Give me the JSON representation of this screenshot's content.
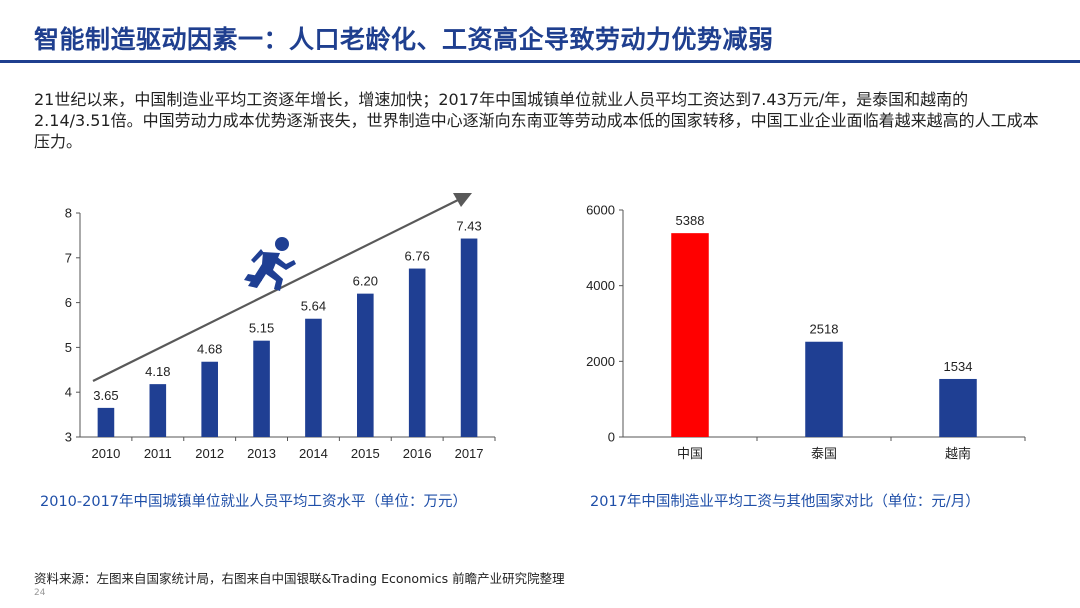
{
  "page": {
    "title": "智能制造驱动因素一：人口老龄化、工资高企导致劳动力优势减弱",
    "intro": "21世纪以来，中国制造业平均工资逐年增长，增速加快；2017年中国城镇单位就业人员平均工资达到7.43万元/年，是泰国和越南的2.14/3.51倍。中国劳动力成本优势逐渐丧失，世界制造中心逐渐向东南亚等劳动成本低的国家转移，中国工业企业面临着越来越高的人工成本压力。",
    "source": "资料来源：左图来自国家统计局，右图来自中国银联&Trading Economics 前瞻产业研究院整理",
    "page_number": "24"
  },
  "colors": {
    "bar": "#1f3f93",
    "highlight": "#ff0000",
    "title": "#1f3f8f",
    "caption": "#1f4fa8",
    "arrow": "#595959"
  },
  "icons": {
    "runner": "running-person-icon"
  },
  "chart_data": [
    {
      "type": "bar",
      "title": "2010-2017年中国城镇单位就业人员平均工资水平（单位：万元）",
      "categories": [
        "2010",
        "2011",
        "2012",
        "2013",
        "2014",
        "2015",
        "2016",
        "2017"
      ],
      "values": [
        3.65,
        4.18,
        4.68,
        5.15,
        5.64,
        6.2,
        6.76,
        7.43
      ],
      "value_labels": [
        "3.65",
        "4.18",
        "4.68",
        "5.15",
        "5.64",
        "6.20",
        "6.76",
        "7.43"
      ],
      "ylim": [
        3,
        8
      ],
      "yticks": [
        "3",
        "4",
        "5",
        "6",
        "7",
        "8"
      ],
      "xlabel": "",
      "ylabel": "",
      "annotation": "upward trend arrow with running person icon"
    },
    {
      "type": "bar",
      "title": "2017年中国制造业平均工资与其他国家对比（单位：元/月）",
      "categories": [
        "中国",
        "泰国",
        "越南"
      ],
      "values": [
        5388,
        2518,
        1534
      ],
      "value_labels": [
        "5388",
        "2518",
        "1534"
      ],
      "ylim": [
        0,
        6000
      ],
      "yticks": [
        "0",
        "2000",
        "4000",
        "6000"
      ],
      "highlight_index": 0,
      "xlabel": "",
      "ylabel": ""
    }
  ]
}
